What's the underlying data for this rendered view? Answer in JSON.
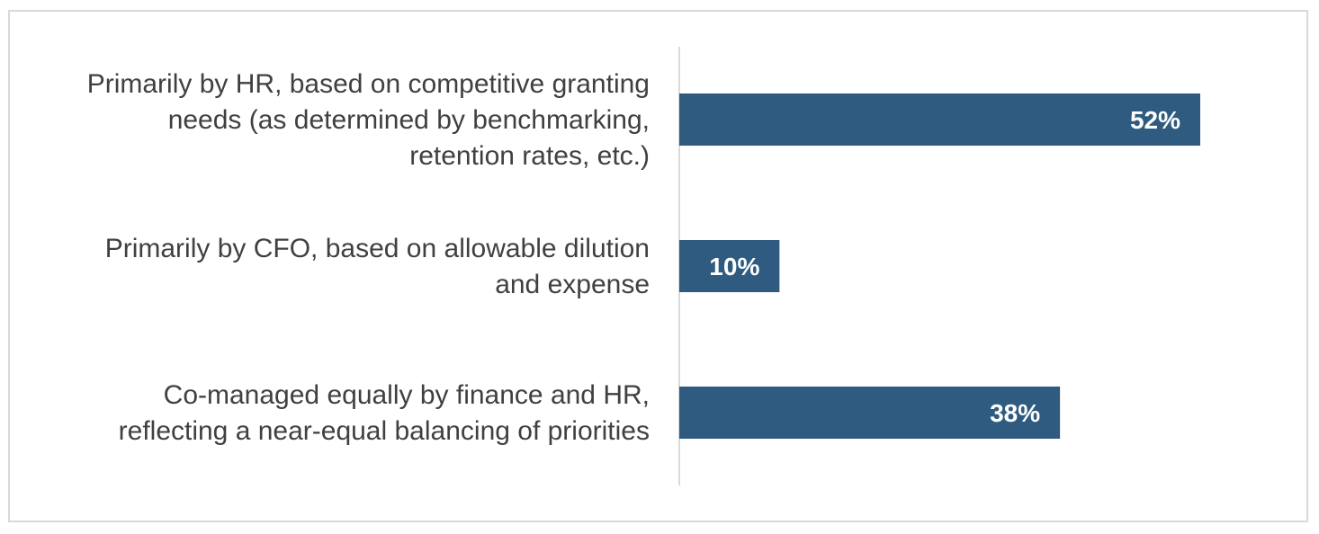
{
  "chart_data": {
    "type": "bar",
    "orientation": "horizontal",
    "categories": [
      [
        "Primarily by HR, based on competitive granting",
        "needs (as determined by benchmarking,",
        "retention rates, etc.)"
      ],
      [
        "Primarily by CFO, based on allowable dilution",
        "and expense"
      ],
      [
        "Co-managed equally by finance and HR,",
        "reflecting a near-equal balancing of priorities"
      ]
    ],
    "values": [
      52,
      10,
      38
    ],
    "value_labels": [
      "52%",
      "10%",
      "38%"
    ],
    "unit": "%",
    "xlim": [
      0,
      60
    ],
    "grid": false,
    "legend": "none",
    "colors": {
      "bar": "#2e5b7f",
      "axis": "#d9d9d9",
      "text": "#404040",
      "border": "#d9d9d9"
    }
  }
}
